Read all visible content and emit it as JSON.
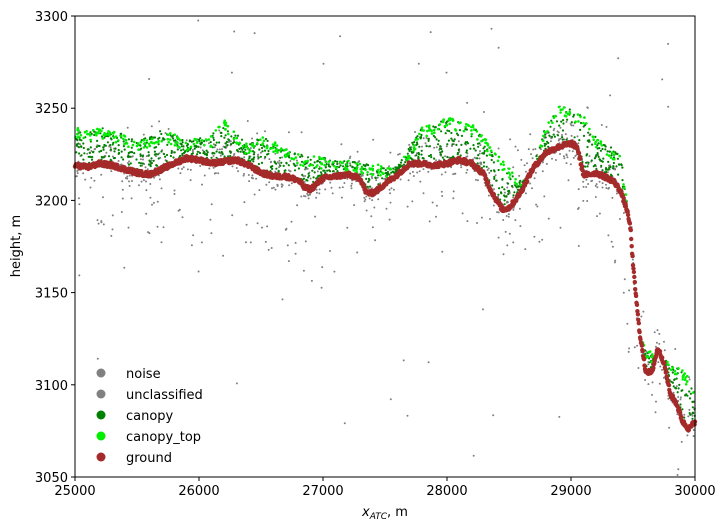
{
  "chart_data": {
    "type": "scatter",
    "title": "",
    "xlabel_main": "x",
    "xlabel_sub": "ATC",
    "xlabel_suffix": ", m",
    "ylabel": "height, m",
    "xlim": [
      25000,
      30000
    ],
    "ylim": [
      3050,
      3300
    ],
    "xticks": [
      "25000",
      "26000",
      "27000",
      "28000",
      "29000",
      "30000"
    ],
    "yticks": [
      "3050",
      "3100",
      "3150",
      "3200",
      "3250",
      "3300"
    ],
    "legend_position": "lower-left",
    "series": [
      {
        "name": "noise",
        "color": "#808080"
      },
      {
        "name": "unclassified",
        "color": "#808080"
      },
      {
        "name": "canopy",
        "color": "#008000"
      },
      {
        "name": "canopy_top",
        "color": "#00ee00"
      },
      {
        "name": "ground",
        "color": "#a52a2a"
      }
    ],
    "ground_profile": {
      "x": [
        25000,
        25100,
        25200,
        25300,
        25400,
        25500,
        25600,
        25700,
        25800,
        25900,
        26000,
        26100,
        26200,
        26300,
        26400,
        26500,
        26600,
        26700,
        26800,
        26850,
        26900,
        26950,
        27000,
        27100,
        27200,
        27300,
        27350,
        27400,
        27450,
        27500,
        27600,
        27700,
        27800,
        27900,
        28000,
        28100,
        28200,
        28300,
        28350,
        28400,
        28450,
        28500,
        28550,
        28600,
        28650,
        28700,
        28800,
        28900,
        29000,
        29050,
        29100,
        29150,
        29200,
        29300,
        29350,
        29400,
        29450,
        29480,
        29500,
        29550,
        29600,
        29650,
        29700,
        29750,
        29800,
        29850,
        29900,
        29950,
        30000
      ],
      "y": [
        3219,
        3218,
        3220,
        3219,
        3217,
        3215,
        3214,
        3217,
        3220,
        3223,
        3222,
        3220,
        3221,
        3222,
        3219,
        3215,
        3213,
        3213,
        3211,
        3207,
        3206,
        3209,
        3212,
        3213,
        3214,
        3212,
        3204,
        3204,
        3206,
        3209,
        3214,
        3220,
        3220,
        3219,
        3220,
        3222,
        3220,
        3214,
        3206,
        3200,
        3195,
        3196,
        3200,
        3205,
        3212,
        3218,
        3226,
        3229,
        3231,
        3229,
        3214,
        3214,
        3215,
        3212,
        3210,
        3205,
        3195,
        3185,
        3165,
        3130,
        3108,
        3106,
        3120,
        3112,
        3095,
        3090,
        3080,
        3076,
        3080
      ]
    },
    "canopy_top_profile": {
      "x": [
        25000,
        25100,
        25200,
        25300,
        25400,
        25500,
        25700,
        25800,
        25900,
        26000,
        26100,
        26200,
        26300,
        26400,
        26500,
        26800,
        27600,
        27800,
        28000,
        28200,
        28400,
        28600,
        28700,
        28800,
        28900,
        29000,
        29100,
        29200,
        29300,
        29400,
        29450,
        29500,
        29550,
        29600,
        29700,
        29800,
        29900,
        30000
      ],
      "y": [
        3240,
        3238,
        3240,
        3238,
        3236,
        3232,
        3238,
        3236,
        3232,
        3234,
        3235,
        3244,
        3236,
        3230,
        3236,
        3225,
        3218,
        3240,
        3245,
        3242,
        3226,
        3210,
        3220,
        3242,
        3252,
        3250,
        3246,
        3235,
        3230,
        3225,
        3200,
        3166,
        3128,
        3120,
        3115,
        3112,
        3108,
        3100
      ]
    },
    "noise_bands": {
      "x": [
        25000,
        25500,
        26000,
        26500,
        27000,
        27500,
        28000,
        28500,
        29000,
        29300,
        29500,
        29700,
        30000
      ],
      "lower": [
        3180,
        3180,
        3165,
        3170,
        3150,
        3180,
        3190,
        3160,
        3190,
        3185,
        3100,
        3080,
        3060
      ],
      "upper": [
        3240,
        3240,
        3250,
        3245,
        3235,
        3235,
        3240,
        3235,
        3255,
        3245,
        3150,
        3130,
        3110
      ]
    }
  }
}
